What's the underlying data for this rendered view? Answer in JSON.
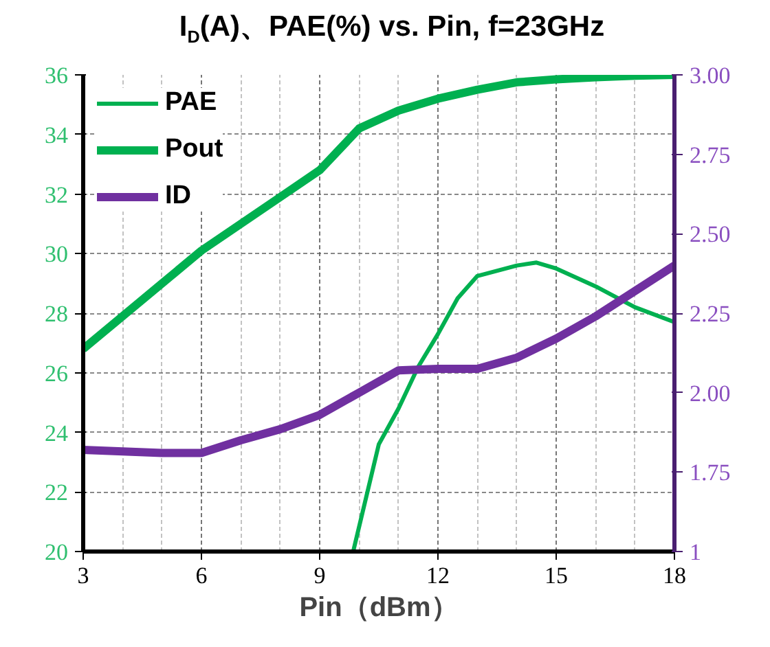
{
  "chart_data": {
    "type": "line",
    "title": "I$_{D}$(A)、PAE(%) vs. Pin, f=23GHz",
    "xlabel": "Pin（dBm）",
    "xlim": [
      3,
      18
    ],
    "xticks": [
      3,
      6,
      9,
      12,
      15,
      18
    ],
    "ylim": [
      20,
      36
    ],
    "yticks": [
      20,
      22,
      24,
      26,
      28,
      30,
      32,
      34,
      36
    ],
    "y2lim": [
      1.5,
      3.0
    ],
    "y2ticks": [
      {
        "value": 1.5,
        "label": "1"
      },
      {
        "value": 1.75,
        "label": "1.75"
      },
      {
        "value": 2.0,
        "label": "2.00"
      },
      {
        "value": 2.25,
        "label": "2.25"
      },
      {
        "value": 2.5,
        "label": "2.50"
      },
      {
        "value": 2.75,
        "label": "2.75"
      },
      {
        "value": 3.0,
        "label": "3.00"
      }
    ],
    "grid": true,
    "legend": "top left",
    "marker": "none",
    "line_style": "solid",
    "series": [
      {
        "name": "PAE",
        "color": "#00b050",
        "x": [
          9.85,
          10.5,
          11,
          11.5,
          12,
          12.5,
          13,
          14,
          14.5,
          15,
          16,
          17,
          18
        ],
        "values": [
          20,
          23.6,
          24.8,
          26.2,
          27.3,
          28.5,
          29.25,
          29.6,
          29.7,
          29.5,
          28.9,
          28.2,
          27.7
        ]
      },
      {
        "name": "Pout",
        "color": "#00b050",
        "x": [
          3,
          4,
          5,
          6,
          7,
          8,
          9,
          10,
          11,
          12,
          13,
          14,
          15,
          16,
          17,
          18
        ],
        "values": [
          26.8,
          27.9,
          29.0,
          30.1,
          31.0,
          31.9,
          32.8,
          34.2,
          34.8,
          35.2,
          35.5,
          35.75,
          35.85,
          35.92,
          35.97,
          36.0
        ]
      },
      {
        "name": "ID",
        "color": "#7030a0",
        "axis": "y2",
        "x": [
          3,
          5,
          6,
          7,
          8,
          9,
          10,
          11,
          12,
          13,
          14,
          15,
          16,
          17,
          18
        ],
        "values": [
          1.82,
          1.81,
          1.81,
          1.85,
          1.885,
          1.93,
          2.0,
          2.07,
          2.075,
          2.075,
          2.11,
          2.17,
          2.24,
          2.32,
          2.4
        ]
      }
    ]
  }
}
